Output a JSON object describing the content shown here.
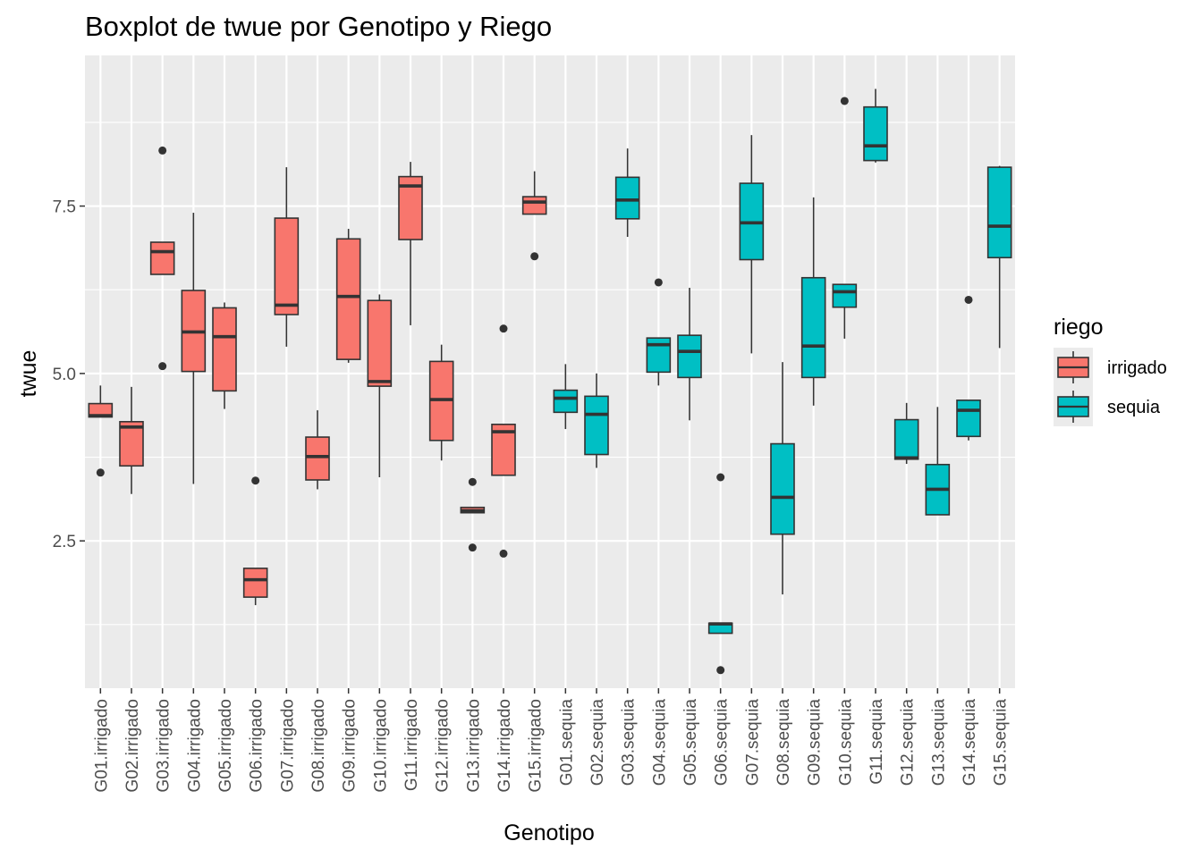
{
  "chart_data": {
    "type": "boxplot",
    "title": "Boxplot de twue por Genotipo y Riego",
    "xlabel": "Genotipo",
    "ylabel": "twue",
    "ylim": [
      0.3,
      9.75
    ],
    "yticks": [
      2.5,
      5.0,
      7.5
    ],
    "ytick_labels": [
      "2.5",
      "5.0",
      "7.5"
    ],
    "grid": true,
    "legend": {
      "title": "riego",
      "placement": "right",
      "entries": [
        {
          "label": "irrigado",
          "color": "#F8766D"
        },
        {
          "label": "sequia",
          "color": "#00BFC4"
        }
      ]
    },
    "colors": {
      "irrigado": "#F8766D",
      "sequia": "#00BFC4",
      "panel": "#EBEBEB",
      "grid": "#FFFFFF",
      "outline": "#333333"
    },
    "categories": [
      "G01.irrigado",
      "G02.irrigado",
      "G03.irrigado",
      "G04.irrigado",
      "G05.irrigado",
      "G06.irrigado",
      "G07.irrigado",
      "G08.irrigado",
      "G09.irrigado",
      "G10.irrigado",
      "G11.irrigado",
      "G12.irrigado",
      "G13.irrigado",
      "G14.irrigado",
      "G15.irrigado",
      "G01.sequia",
      "G02.sequia",
      "G03.sequia",
      "G04.sequia",
      "G05.sequia",
      "G06.sequia",
      "G07.sequia",
      "G08.sequia",
      "G09.sequia",
      "G10.sequia",
      "G11.sequia",
      "G12.sequia",
      "G13.sequia",
      "G14.sequia",
      "G15.sequia"
    ],
    "boxes": [
      {
        "group": "irrigado",
        "whisker_low": 4.35,
        "q1": 4.35,
        "median": 4.37,
        "q3": 4.55,
        "whisker_high": 4.82,
        "outliers": [
          3.52
        ]
      },
      {
        "group": "irrigado",
        "whisker_low": 3.2,
        "q1": 3.62,
        "median": 4.2,
        "q3": 4.28,
        "whisker_high": 4.8,
        "outliers": []
      },
      {
        "group": "irrigado",
        "whisker_low": 6.48,
        "q1": 6.48,
        "median": 6.82,
        "q3": 6.96,
        "whisker_high": 6.96,
        "outliers": [
          8.33,
          5.11
        ]
      },
      {
        "group": "irrigado",
        "whisker_low": 3.35,
        "q1": 5.03,
        "median": 5.62,
        "q3": 6.24,
        "whisker_high": 7.4,
        "outliers": []
      },
      {
        "group": "irrigado",
        "whisker_low": 4.47,
        "q1": 4.74,
        "median": 5.55,
        "q3": 5.98,
        "whisker_high": 6.06,
        "outliers": []
      },
      {
        "group": "irrigado",
        "whisker_low": 1.54,
        "q1": 1.66,
        "median": 1.92,
        "q3": 2.09,
        "whisker_high": 2.09,
        "outliers": [
          3.4
        ]
      },
      {
        "group": "irrigado",
        "whisker_low": 5.4,
        "q1": 5.88,
        "median": 6.02,
        "q3": 7.32,
        "whisker_high": 8.08,
        "outliers": []
      },
      {
        "group": "irrigado",
        "whisker_low": 3.27,
        "q1": 3.41,
        "median": 3.76,
        "q3": 4.05,
        "whisker_high": 4.45,
        "outliers": []
      },
      {
        "group": "irrigado",
        "whisker_low": 5.16,
        "q1": 5.21,
        "median": 6.15,
        "q3": 7.01,
        "whisker_high": 7.16,
        "outliers": []
      },
      {
        "group": "irrigado",
        "whisker_low": 3.45,
        "q1": 4.81,
        "median": 4.88,
        "q3": 6.09,
        "whisker_high": 6.18,
        "outliers": []
      },
      {
        "group": "irrigado",
        "whisker_low": 5.72,
        "q1": 7.0,
        "median": 7.8,
        "q3": 7.94,
        "whisker_high": 8.16,
        "outliers": []
      },
      {
        "group": "irrigado",
        "whisker_low": 3.7,
        "q1": 4.0,
        "median": 4.61,
        "q3": 5.18,
        "whisker_high": 5.43,
        "outliers": []
      },
      {
        "group": "irrigado",
        "whisker_low": 2.92,
        "q1": 2.92,
        "median": 2.95,
        "q3": 3.0,
        "whisker_high": 3.0,
        "outliers": [
          3.38,
          2.4
        ]
      },
      {
        "group": "irrigado",
        "whisker_low": 3.48,
        "q1": 3.48,
        "median": 4.13,
        "q3": 4.24,
        "whisker_high": 4.24,
        "outliers": [
          5.67,
          2.31
        ]
      },
      {
        "group": "irrigado",
        "whisker_low": 7.38,
        "q1": 7.38,
        "median": 7.56,
        "q3": 7.64,
        "whisker_high": 8.02,
        "outliers": [
          6.75
        ]
      },
      {
        "group": "sequia",
        "whisker_low": 4.17,
        "q1": 4.42,
        "median": 4.63,
        "q3": 4.75,
        "whisker_high": 5.14,
        "outliers": []
      },
      {
        "group": "sequia",
        "whisker_low": 3.59,
        "q1": 3.79,
        "median": 4.39,
        "q3": 4.66,
        "whisker_high": 5.0,
        "outliers": []
      },
      {
        "group": "sequia",
        "whisker_low": 7.04,
        "q1": 7.31,
        "median": 7.59,
        "q3": 7.93,
        "whisker_high": 8.36,
        "outliers": []
      },
      {
        "group": "sequia",
        "whisker_low": 4.82,
        "q1": 5.02,
        "median": 5.43,
        "q3": 5.53,
        "whisker_high": 5.53,
        "outliers": [
          6.36
        ]
      },
      {
        "group": "sequia",
        "whisker_low": 4.3,
        "q1": 4.94,
        "median": 5.33,
        "q3": 5.57,
        "whisker_high": 6.28,
        "outliers": []
      },
      {
        "group": "sequia",
        "whisker_low": 1.12,
        "q1": 1.12,
        "median": 1.26,
        "q3": 1.27,
        "whisker_high": 1.27,
        "outliers": [
          3.45,
          0.57
        ]
      },
      {
        "group": "sequia",
        "whisker_low": 5.3,
        "q1": 6.7,
        "median": 7.25,
        "q3": 7.84,
        "whisker_high": 8.56,
        "outliers": []
      },
      {
        "group": "sequia",
        "whisker_low": 1.7,
        "q1": 2.6,
        "median": 3.15,
        "q3": 3.95,
        "whisker_high": 5.17,
        "outliers": []
      },
      {
        "group": "sequia",
        "whisker_low": 4.52,
        "q1": 4.94,
        "median": 5.41,
        "q3": 6.43,
        "whisker_high": 7.63,
        "outliers": []
      },
      {
        "group": "sequia",
        "whisker_low": 5.52,
        "q1": 5.99,
        "median": 6.22,
        "q3": 6.33,
        "whisker_high": 6.33,
        "outliers": [
          9.07
        ]
      },
      {
        "group": "sequia",
        "whisker_low": 8.15,
        "q1": 8.18,
        "median": 8.4,
        "q3": 8.98,
        "whisker_high": 9.25,
        "outliers": []
      },
      {
        "group": "sequia",
        "whisker_low": 3.65,
        "q1": 3.72,
        "median": 3.74,
        "q3": 4.31,
        "whisker_high": 4.56,
        "outliers": []
      },
      {
        "group": "sequia",
        "whisker_low": 2.89,
        "q1": 2.89,
        "median": 3.27,
        "q3": 3.64,
        "whisker_high": 4.5,
        "outliers": []
      },
      {
        "group": "sequia",
        "whisker_low": 4.0,
        "q1": 4.06,
        "median": 4.45,
        "q3": 4.6,
        "whisker_high": 4.6,
        "outliers": [
          6.1
        ]
      },
      {
        "group": "sequia",
        "whisker_low": 5.38,
        "q1": 6.73,
        "median": 7.2,
        "q3": 8.08,
        "whisker_high": 8.1,
        "outliers": []
      }
    ]
  }
}
